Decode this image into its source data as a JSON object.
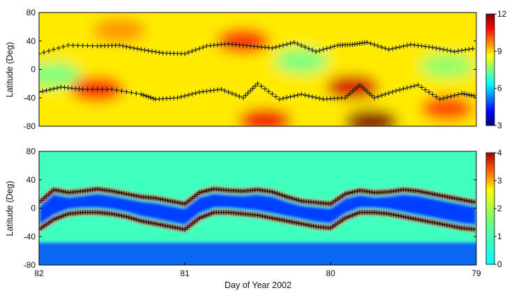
{
  "chart_data": [
    {
      "type": "heatmap",
      "panel": "top",
      "ylabel": "Latitude (Deg)",
      "xlabel": "",
      "xlim": [
        82,
        79
      ],
      "ylim": [
        -80,
        80
      ],
      "yticks": [
        80,
        40,
        0,
        -40,
        -80
      ],
      "colorbar": {
        "min": 3,
        "max": 12,
        "ticks": [
          12,
          9,
          6,
          3
        ]
      },
      "colormap": "jet",
      "background_level": 8.8,
      "field_features": [
        {
          "x": 81.6,
          "y": -28,
          "value": 10.7
        },
        {
          "x": 81.45,
          "y": 55,
          "value": 9.6
        },
        {
          "x": 80.6,
          "y": 40,
          "value": 10.6
        },
        {
          "x": 79.85,
          "y": -25,
          "value": 11.3
        },
        {
          "x": 79.72,
          "y": -74,
          "value": 12
        },
        {
          "x": 81.9,
          "y": -8,
          "value": 7.4
        },
        {
          "x": 80.2,
          "y": 12,
          "value": 7.4
        },
        {
          "x": 79.2,
          "y": 5,
          "value": 7.6
        },
        {
          "x": 80.45,
          "y": -72,
          "value": 11
        },
        {
          "x": 79.2,
          "y": -55,
          "value": 10.4
        }
      ],
      "series": [
        {
          "marker": "+",
          "x": [
            82.0,
            81.8,
            81.6,
            81.45,
            81.3,
            81.15,
            81.0,
            80.85,
            80.7,
            80.55,
            80.4,
            80.25,
            80.1,
            79.95,
            79.85,
            79.75,
            79.6,
            79.45,
            79.3,
            79.15,
            79.0
          ],
          "y": [
            22,
            34,
            33,
            34,
            28,
            23,
            22,
            33,
            36,
            33,
            30,
            38,
            25,
            34,
            35,
            38,
            28,
            35,
            31,
            25,
            30
          ]
        },
        {
          "marker": "+",
          "x": [
            82.0,
            81.85,
            81.7,
            81.5,
            81.3,
            81.2,
            81.05,
            80.9,
            80.75,
            80.6,
            80.5,
            80.35,
            80.2,
            80.05,
            79.9,
            79.8,
            79.7,
            79.55,
            79.4,
            79.25,
            79.1,
            79.0
          ],
          "y": [
            -32,
            -25,
            -28,
            -28,
            -35,
            -42,
            -40,
            -32,
            -28,
            -40,
            -20,
            -42,
            -35,
            -42,
            -40,
            -22,
            -40,
            -30,
            -22,
            -42,
            -34,
            -38
          ]
        }
      ]
    },
    {
      "type": "heatmap",
      "panel": "bottom",
      "ylabel": "Latitude (Deg)",
      "xlabel": "Day of Year 2002",
      "xlim": [
        82,
        79
      ],
      "ylim": [
        -80,
        80
      ],
      "yticks": [
        80,
        40,
        0,
        -40,
        -80
      ],
      "xticks": [
        82,
        81,
        80,
        79
      ],
      "colorbar": {
        "min": 0,
        "max": 4,
        "ticks": [
          4,
          3,
          2,
          1,
          0
        ]
      },
      "colormap": "jet",
      "background_level": 1.75,
      "band_level": 0.75,
      "low_level_south": 0.8,
      "series": [
        {
          "marker": "+",
          "x": [
            82.0,
            81.9,
            81.8,
            81.7,
            81.6,
            81.5,
            81.4,
            81.3,
            81.2,
            81.1,
            81.0,
            80.9,
            80.8,
            80.7,
            80.6,
            80.5,
            80.4,
            80.3,
            80.2,
            80.1,
            80.0,
            79.9,
            79.8,
            79.7,
            79.6,
            79.5,
            79.4,
            79.3,
            79.2,
            79.1,
            79.0
          ],
          "y": [
            8,
            26,
            22,
            24,
            27,
            24,
            20,
            16,
            14,
            10,
            6,
            22,
            27,
            25,
            24,
            26,
            23,
            16,
            10,
            8,
            6,
            20,
            25,
            22,
            23,
            26,
            24,
            20,
            16,
            12,
            8
          ]
        },
        {
          "marker": "+",
          "x": [
            82.0,
            81.9,
            81.8,
            81.7,
            81.6,
            81.5,
            81.4,
            81.3,
            81.2,
            81.1,
            81.0,
            80.9,
            80.8,
            80.7,
            80.6,
            80.5,
            80.4,
            80.3,
            80.2,
            80.1,
            80.0,
            79.9,
            79.8,
            79.7,
            79.6,
            79.5,
            79.4,
            79.3,
            79.2,
            79.1,
            79.0
          ],
          "y": [
            -30,
            -16,
            -8,
            -6,
            -6,
            -8,
            -12,
            -18,
            -22,
            -26,
            -30,
            -14,
            -6,
            -6,
            -8,
            -10,
            -14,
            -18,
            -22,
            -26,
            -28,
            -14,
            -6,
            -6,
            -8,
            -12,
            -16,
            -20,
            -24,
            -28,
            -30
          ]
        }
      ]
    }
  ]
}
